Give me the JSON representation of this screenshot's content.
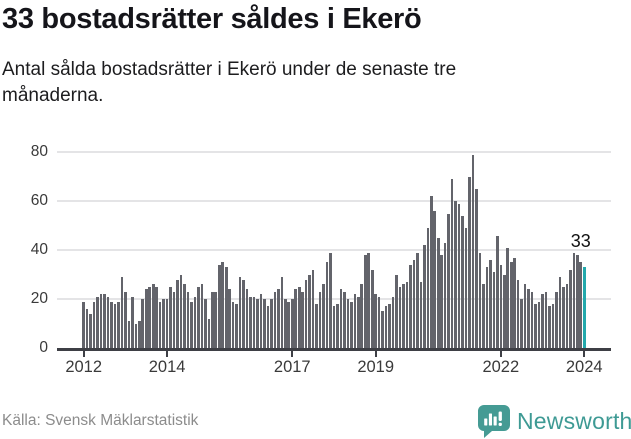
{
  "header": {
    "title": "33 bostadsrätter såldes i Ekerö",
    "subtitle": "Antal sålda bostadsrätter i Ekerö under de senaste tre månaderna."
  },
  "chart_data": {
    "type": "bar",
    "title": "33 bostadsrätter såldes i Ekerö",
    "xlabel": "",
    "ylabel": "",
    "x_unit": "month",
    "x_start_year": "2012",
    "x_end_year": "2024",
    "ylim": [
      0,
      84
    ],
    "yticks": [
      0,
      20,
      40,
      60,
      80
    ],
    "grid": true,
    "values": [
      19,
      16,
      14,
      19,
      21,
      22,
      22,
      21,
      19,
      18,
      19,
      29,
      23,
      11,
      21,
      10,
      11,
      20,
      24,
      25,
      26,
      25,
      19,
      20,
      20,
      25,
      23,
      28,
      30,
      26,
      23,
      19,
      21,
      25,
      26,
      20,
      12,
      23,
      23,
      34,
      35,
      33,
      24,
      19,
      18,
      29,
      28,
      24,
      21,
      21,
      20,
      22,
      20,
      17,
      20,
      23,
      24,
      29,
      20,
      19,
      20,
      24,
      25,
      23,
      28,
      30,
      32,
      18,
      23,
      26,
      35,
      39,
      17,
      18,
      24,
      23,
      20,
      19,
      22,
      21,
      26,
      38,
      39,
      32,
      22,
      21,
      15,
      17,
      18,
      21,
      30,
      25,
      26,
      27,
      34,
      36,
      39,
      27,
      42,
      49,
      62,
      56,
      45,
      38,
      43,
      55,
      69,
      60,
      59,
      54,
      49,
      70,
      79,
      65,
      39,
      26,
      33,
      36,
      31,
      46,
      34,
      30,
      41,
      35,
      37,
      28,
      20,
      26,
      24,
      23,
      18,
      19,
      22,
      23,
      17,
      18,
      23,
      29,
      25,
      26,
      32,
      39,
      38,
      35,
      33
    ],
    "year_ticks": [
      {
        "label": "2012",
        "month_index": 0
      },
      {
        "label": "2014",
        "month_index": 24
      },
      {
        "label": "2017",
        "month_index": 60
      },
      {
        "label": "2019",
        "month_index": 84
      },
      {
        "label": "2022",
        "month_index": 120
      },
      {
        "label": "2024",
        "month_index": 144
      }
    ],
    "highlight_index": 144,
    "annotation": {
      "text": "33",
      "value": 33
    },
    "bar_color": "#63646b",
    "highlight_color": "#23a9ac",
    "axis_color": "#3e3f45",
    "grid_color": "#e4e4e6"
  },
  "footer": {
    "source": "Källa: Svensk Mäklarstatistik",
    "brand": "Newsworthy",
    "logo_icon": "speech-bubble-bar-chart-icon",
    "logo_color": "#459b94"
  }
}
